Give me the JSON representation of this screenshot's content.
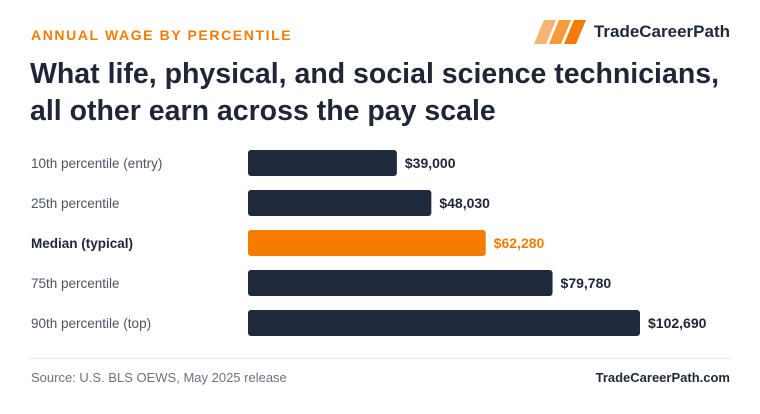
{
  "header": {
    "eyebrow": "ANNUAL WAGE BY PERCENTILE",
    "brand_name": "TradeCareerPath",
    "title": "What life, physical, and social science technicians, all other earn across the pay scale"
  },
  "footer": {
    "source": "Source: U.S. BLS OEWS, May 2025 release",
    "site": "TradeCareerPath.com"
  },
  "colors": {
    "accent": "#f57c00",
    "bar": "#1f2a3d",
    "label_dark": "#1e2638",
    "label_muted": "#4b5563"
  },
  "chart_data": {
    "type": "bar",
    "orientation": "horizontal",
    "categories": [
      "10th percentile (entry)",
      "25th percentile",
      "Median (typical)",
      "75th percentile",
      "90th percentile (top)"
    ],
    "values": [
      39000,
      48030,
      62280,
      79780,
      102690
    ],
    "value_labels": [
      "$39,000",
      "$48,030",
      "$62,280",
      "$79,780",
      "$102,690"
    ],
    "highlight_index": 2,
    "xlim": [
      0,
      102690
    ],
    "grid": false,
    "legend": "none"
  }
}
